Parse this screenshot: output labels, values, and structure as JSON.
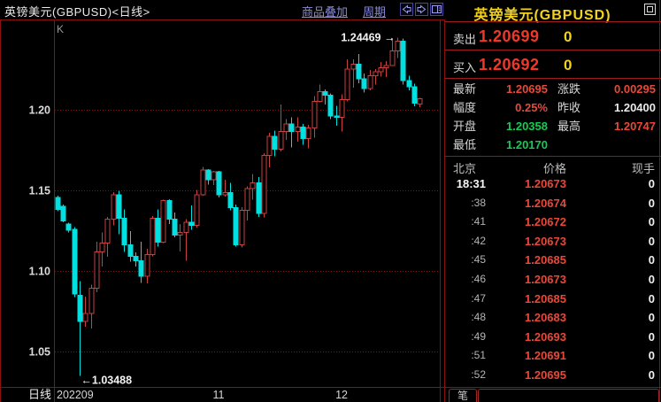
{
  "window": {
    "title": "英镑美元(GBPUSD)<日线>",
    "menu": {
      "overlay": "商品叠加",
      "period": "周期"
    }
  },
  "chart": {
    "indicator_label": "K",
    "period_label": "日线"
  },
  "chart_data": {
    "type": "candlestick",
    "symbol": "GBPUSD",
    "period": "daily",
    "y_ticks": [
      {
        "value": 1.2,
        "label": "1.20"
      },
      {
        "value": 1.15,
        "label": "1.15"
      },
      {
        "value": 1.1,
        "label": "1.10"
      },
      {
        "value": 1.05,
        "label": "1.05"
      }
    ],
    "x_labels": [
      {
        "label": "202209",
        "at": "start"
      },
      {
        "label": "11",
        "month": "11"
      },
      {
        "label": "12",
        "month": "12"
      }
    ],
    "annotations": {
      "high": "1.24469",
      "low": "1.03488"
    },
    "colors": {
      "up": "#c84040",
      "down": "#00e0e0",
      "grid": "#7c1212",
      "border": "#8a1111",
      "label": "#d6d6d6"
    },
    "candles": [
      [
        "09-19",
        1.1455,
        1.1468,
        1.1372,
        1.1382
      ],
      [
        "09-20",
        1.14,
        1.1412,
        1.1302,
        1.131
      ],
      [
        "09-21",
        1.1292,
        1.13,
        1.1238,
        1.1252
      ],
      [
        "09-22",
        1.1258,
        1.1272,
        1.0838,
        1.0858
      ],
      [
        "09-23",
        1.085,
        1.0938,
        1.03488,
        1.0688
      ],
      [
        "09-26",
        1.0688,
        1.0842,
        1.0654,
        1.0735
      ],
      [
        "09-27",
        1.0735,
        1.0916,
        1.0642,
        1.0892
      ],
      [
        "09-28",
        1.0892,
        1.118,
        1.0868,
        1.1118
      ],
      [
        "09-29",
        1.1118,
        1.1238,
        1.1028,
        1.1172
      ],
      [
        "09-30",
        1.1172,
        1.1336,
        1.1088,
        1.1322
      ],
      [
        "10-03",
        1.1322,
        1.149,
        1.1282,
        1.1472
      ],
      [
        "10-04",
        1.1472,
        1.1496,
        1.1228,
        1.1328
      ],
      [
        "10-05",
        1.1328,
        1.1382,
        1.1118,
        1.1162
      ],
      [
        "10-06",
        1.1162,
        1.1246,
        1.1058,
        1.1092
      ],
      [
        "10-07",
        1.1092,
        1.1116,
        1.1028,
        1.1062
      ],
      [
        "10-10",
        1.1062,
        1.1182,
        1.0926,
        1.0968
      ],
      [
        "10-11",
        1.0968,
        1.1136,
        1.0922,
        1.1102
      ],
      [
        "10-12",
        1.1102,
        1.1342,
        1.1092,
        1.1326
      ],
      [
        "10-13",
        1.1326,
        1.1382,
        1.1152,
        1.1178
      ],
      [
        "10-14",
        1.1178,
        1.1442,
        1.1172,
        1.1436
      ],
      [
        "10-17",
        1.1436,
        1.1446,
        1.1292,
        1.1322
      ],
      [
        "10-18",
        1.1322,
        1.1362,
        1.1208,
        1.1222
      ],
      [
        "10-19",
        1.1222,
        1.1292,
        1.1122,
        1.1238
      ],
      [
        "10-20",
        1.1238,
        1.1322,
        1.1062,
        1.1302
      ],
      [
        "10-21",
        1.1302,
        1.1406,
        1.1256,
        1.1282
      ],
      [
        "10-24",
        1.1282,
        1.1502,
        1.1268,
        1.1472
      ],
      [
        "10-25",
        1.1472,
        1.1646,
        1.1466,
        1.1626
      ],
      [
        "10-26",
        1.1626,
        1.1632,
        1.1536,
        1.1566
      ],
      [
        "10-27",
        1.1566,
        1.1622,
        1.1532,
        1.1616
      ],
      [
        "10-28",
        1.1616,
        1.1622,
        1.1456,
        1.1472
      ],
      [
        "10-31",
        1.1472,
        1.1566,
        1.1462,
        1.1486
      ],
      [
        "11-01",
        1.1486,
        1.1546,
        1.1376,
        1.1392
      ],
      [
        "11-02",
        1.1392,
        1.1412,
        1.1152,
        1.1162
      ],
      [
        "11-03",
        1.1162,
        1.1396,
        1.1146,
        1.1376
      ],
      [
        "11-04",
        1.1376,
        1.1526,
        1.1312,
        1.1512
      ],
      [
        "11-07",
        1.1512,
        1.1602,
        1.1442,
        1.1546
      ],
      [
        "11-08",
        1.1546,
        1.1582,
        1.1336,
        1.1356
      ],
      [
        "11-09",
        1.1356,
        1.1732,
        1.1332,
        1.1716
      ],
      [
        "11-10",
        1.1716,
        1.1856,
        1.1642,
        1.1836
      ],
      [
        "11-11",
        1.1836,
        1.1872,
        1.1712,
        1.1756
      ],
      [
        "11-14",
        1.1756,
        1.2032,
        1.1742,
        1.1866
      ],
      [
        "11-15",
        1.1866,
        1.1942,
        1.1812,
        1.1912
      ],
      [
        "11-16",
        1.1912,
        1.1952,
        1.1766,
        1.1866
      ],
      [
        "11-17",
        1.1866,
        1.1952,
        1.1802,
        1.1892
      ],
      [
        "11-18",
        1.1892,
        1.1912,
        1.1782,
        1.1822
      ],
      [
        "11-21",
        1.1822,
        1.1906,
        1.1762,
        1.1886
      ],
      [
        "11-22",
        1.1886,
        1.2086,
        1.1826,
        1.2052
      ],
      [
        "11-23",
        1.2052,
        1.2156,
        1.2046,
        1.2112
      ],
      [
        "11-24",
        1.2112,
        1.2126,
        1.2032,
        1.2092
      ],
      [
        "11-25",
        1.2092,
        1.2102,
        1.1942,
        1.1962
      ],
      [
        "11-28",
        1.1962,
        1.2026,
        1.1902,
        1.1952
      ],
      [
        "11-29",
        1.1952,
        1.2096,
        1.1866,
        1.2062
      ],
      [
        "11-30",
        1.2062,
        1.2312,
        1.2052,
        1.2252
      ],
      [
        "12-01",
        1.2252,
        1.2312,
        1.2136,
        1.2282
      ],
      [
        "12-02",
        1.2282,
        1.2346,
        1.2166,
        1.2192
      ],
      [
        "12-05",
        1.2192,
        1.2226,
        1.2106,
        1.2132
      ],
      [
        "12-06",
        1.2132,
        1.2246,
        1.2122,
        1.2212
      ],
      [
        "12-07",
        1.2212,
        1.2252,
        1.2156,
        1.2236
      ],
      [
        "12-08",
        1.2236,
        1.2296,
        1.2206,
        1.2262
      ],
      [
        "12-09",
        1.2262,
        1.2302,
        1.2202,
        1.2276
      ],
      [
        "12-12",
        1.2276,
        1.2446,
        1.2272,
        1.2366
      ],
      [
        "12-13",
        1.2366,
        1.24469,
        1.2322,
        1.2426
      ],
      [
        "12-14",
        1.2426,
        1.2442,
        1.2156,
        1.2182
      ],
      [
        "12-15",
        1.2182,
        1.2212,
        1.2122,
        1.2142
      ],
      [
        "12-16",
        1.2142,
        1.2162,
        1.2022,
        1.204
      ],
      [
        "12-19",
        1.20358,
        1.20747,
        1.2017,
        1.20695
      ]
    ]
  },
  "quote_panel": {
    "symbol_title": "英镑美元(GBPUSD)",
    "sell": {
      "label": "卖出",
      "price": "1.20699",
      "size": "0"
    },
    "buy": {
      "label": "买入",
      "price": "1.20692",
      "size": "0"
    },
    "fields": [
      {
        "label": "最新",
        "value": "1.20695",
        "color": "red"
      },
      {
        "label": "涨跌",
        "value": "0.00295",
        "color": "red"
      },
      {
        "label": "幅度",
        "value": "0.25%",
        "color": "red"
      },
      {
        "label": "昨收",
        "value": "1.20400",
        "color": "white"
      },
      {
        "label": "开盘",
        "value": "1.20358",
        "color": "green"
      },
      {
        "label": "最高",
        "value": "1.20747",
        "color": "red"
      },
      {
        "label": "最低",
        "value": "1.20170",
        "color": "green"
      }
    ],
    "table": {
      "headers": [
        "北京",
        "价格",
        "现手"
      ],
      "rows": [
        {
          "time": "18:31",
          "price": "1.20673",
          "vol": "0"
        },
        {
          "time": ":38",
          "price": "1.20674",
          "vol": "0"
        },
        {
          "time": ":41",
          "price": "1.20672",
          "vol": "0"
        },
        {
          "time": ":42",
          "price": "1.20673",
          "vol": "0"
        },
        {
          "time": ":45",
          "price": "1.20685",
          "vol": "0"
        },
        {
          "time": ":46",
          "price": "1.20673",
          "vol": "0"
        },
        {
          "time": ":47",
          "price": "1.20685",
          "vol": "0"
        },
        {
          "time": ":48",
          "price": "1.20683",
          "vol": "0"
        },
        {
          "time": ":49",
          "price": "1.20693",
          "vol": "0"
        },
        {
          "time": ":51",
          "price": "1.20691",
          "vol": "0"
        },
        {
          "time": ":52",
          "price": "1.20695",
          "vol": "0"
        }
      ]
    },
    "bottom_tab": "笔"
  }
}
